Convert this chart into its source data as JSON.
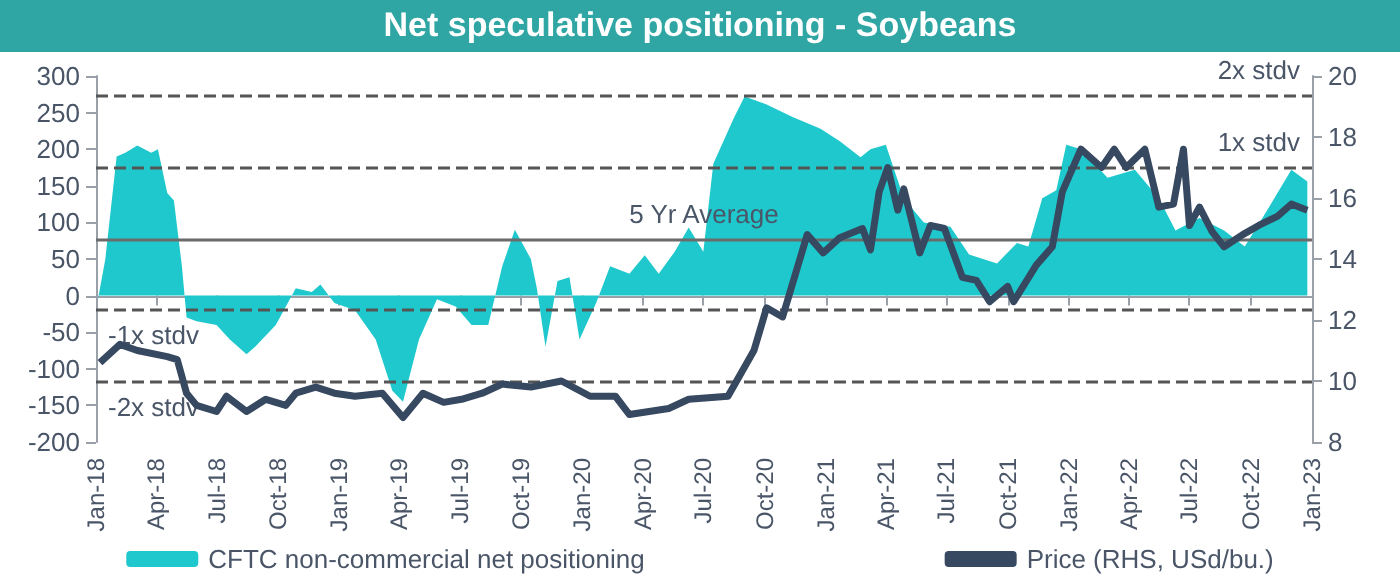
{
  "chart_data": {
    "type": "area",
    "title": "Net speculative positioning - Soybeans",
    "xlim": [
      "2018-01-01",
      "2023-01-01"
    ],
    "xticks": [
      {
        "value": "2018-01-01",
        "label": "Jan-18"
      },
      {
        "value": "2018-04-01",
        "label": "Apr-18"
      },
      {
        "value": "2018-07-01",
        "label": "Jul-18"
      },
      {
        "value": "2018-10-01",
        "label": "Oct-18"
      },
      {
        "value": "2019-01-01",
        "label": "Jan-19"
      },
      {
        "value": "2019-04-01",
        "label": "Apr-19"
      },
      {
        "value": "2019-07-01",
        "label": "Jul-19"
      },
      {
        "value": "2019-10-01",
        "label": "Oct-19"
      },
      {
        "value": "2020-01-01",
        "label": "Jan-20"
      },
      {
        "value": "2020-04-01",
        "label": "Apr-20"
      },
      {
        "value": "2020-07-01",
        "label": "Jul-20"
      },
      {
        "value": "2020-10-01",
        "label": "Oct-20"
      },
      {
        "value": "2021-01-01",
        "label": "Jan-21"
      },
      {
        "value": "2021-04-01",
        "label": "Apr-21"
      },
      {
        "value": "2021-07-01",
        "label": "Jul-21"
      },
      {
        "value": "2021-10-01",
        "label": "Oct-21"
      },
      {
        "value": "2022-01-01",
        "label": "Jan-22"
      },
      {
        "value": "2022-04-01",
        "label": "Apr-22"
      },
      {
        "value": "2022-07-01",
        "label": "Jul-22"
      },
      {
        "value": "2022-10-01",
        "label": "Oct-22"
      },
      {
        "value": "2023-01-01",
        "label": "Jan-23"
      }
    ],
    "ylim": [
      -200,
      300
    ],
    "yticks": [
      -200,
      -150,
      -100,
      -50,
      0,
      50,
      100,
      150,
      200,
      250,
      300
    ],
    "y2lim": [
      8,
      20
    ],
    "y2ticks": [
      8,
      10,
      12,
      14,
      16,
      18,
      20
    ],
    "grid": false,
    "legend": "bottom",
    "series": [
      {
        "name": "CFTC non-commercial net positioning",
        "color": "#1fc8cc",
        "x": [
          "2018-01-04",
          "2018-01-15",
          "2018-02-01",
          "2018-02-14",
          "2018-03-04",
          "2018-03-25",
          "2018-04-04",
          "2018-04-18",
          "2018-04-28",
          "2018-05-10",
          "2018-05-17",
          "2018-06-01",
          "2018-07-01",
          "2018-07-21",
          "2018-08-15",
          "2018-08-28",
          "2018-09-28",
          "2018-10-28",
          "2018-11-21",
          "2018-12-04",
          "2018-12-25",
          "2019-01-25",
          "2019-02-25",
          "2019-03-22",
          "2019-04-07",
          "2019-05-01",
          "2019-05-28",
          "2019-06-25",
          "2019-07-19",
          "2019-08-13",
          "2019-09-03",
          "2019-09-22",
          "2019-10-16",
          "2019-10-25",
          "2019-11-07",
          "2019-11-25",
          "2019-12-13",
          "2019-12-28",
          "2020-01-22",
          "2020-02-12",
          "2020-03-12",
          "2020-04-04",
          "2020-04-25",
          "2020-05-19",
          "2020-06-09",
          "2020-07-01",
          "2020-07-16",
          "2020-08-16",
          "2020-09-01",
          "2020-10-04",
          "2020-11-12",
          "2020-12-24",
          "2021-01-22",
          "2021-02-22",
          "2021-03-09",
          "2021-04-01",
          "2021-04-28",
          "2021-05-28",
          "2021-07-07",
          "2021-08-04",
          "2021-09-15",
          "2021-10-15",
          "2021-11-01",
          "2021-11-22",
          "2021-12-13",
          "2021-12-28",
          "2022-01-19",
          "2022-02-28",
          "2022-04-10",
          "2022-05-16",
          "2022-06-10",
          "2022-07-16",
          "2022-08-22",
          "2022-09-22",
          "2022-10-22",
          "2022-12-01",
          "2022-12-25"
        ],
        "values": [
          -5,
          50,
          190,
          195,
          205,
          195,
          200,
          140,
          130,
          40,
          -30,
          -35,
          -40,
          -60,
          -80,
          -70,
          -40,
          10,
          5,
          15,
          -10,
          -20,
          -60,
          -130,
          -145,
          -60,
          -5,
          -15,
          -40,
          -40,
          40,
          90,
          50,
          10,
          -70,
          20,
          25,
          -60,
          -10,
          40,
          30,
          55,
          30,
          60,
          93,
          60,
          180,
          243,
          272,
          261,
          244,
          228,
          211,
          189,
          200,
          206,
          133,
          100,
          94,
          56,
          44,
          72,
          67,
          133,
          144,
          206,
          200,
          161,
          172,
          133,
          89,
          106,
          89,
          67,
          111,
          172,
          156
        ]
      },
      {
        "name": "Price (RHS, USd/bu.)",
        "type": "line",
        "axis": "y2",
        "color": "#374861",
        "x": [
          "2018-01-07",
          "2018-02-06",
          "2018-03-04",
          "2018-04-18",
          "2018-05-03",
          "2018-05-17",
          "2018-06-01",
          "2018-07-01",
          "2018-07-16",
          "2018-08-15",
          "2018-09-13",
          "2018-10-13",
          "2018-10-28",
          "2018-11-27",
          "2018-12-25",
          "2019-01-25",
          "2019-03-07",
          "2019-04-07",
          "2019-05-07",
          "2019-06-07",
          "2019-07-04",
          "2019-08-04",
          "2019-09-03",
          "2019-10-16",
          "2019-12-01",
          "2020-01-13",
          "2020-02-20",
          "2020-03-12",
          "2020-05-10",
          "2020-06-09",
          "2020-08-07",
          "2020-09-15",
          "2020-10-04",
          "2020-10-28",
          "2020-12-04",
          "2020-12-28",
          "2021-01-22",
          "2021-02-25",
          "2021-03-09",
          "2021-03-22",
          "2021-04-04",
          "2021-04-19",
          "2021-04-28",
          "2021-05-22",
          "2021-06-07",
          "2021-06-28",
          "2021-07-25",
          "2021-08-15",
          "2021-09-04",
          "2021-10-01",
          "2021-10-10",
          "2021-11-13",
          "2021-12-07",
          "2021-12-22",
          "2022-01-19",
          "2022-02-19",
          "2022-03-10",
          "2022-03-28",
          "2022-04-25",
          "2022-05-16",
          "2022-06-07",
          "2022-06-22",
          "2022-07-01",
          "2022-07-16",
          "2022-08-04",
          "2022-08-22",
          "2022-09-19",
          "2022-10-13",
          "2022-11-10",
          "2022-12-01",
          "2022-12-25"
        ],
        "values": [
          10.6,
          11.2,
          11.0,
          10.8,
          10.7,
          9.6,
          9.2,
          9.0,
          9.5,
          9.0,
          9.4,
          9.2,
          9.6,
          9.8,
          9.6,
          9.5,
          9.6,
          8.8,
          9.6,
          9.3,
          9.4,
          9.6,
          9.9,
          9.8,
          10.0,
          9.5,
          9.5,
          8.9,
          9.1,
          9.4,
          9.5,
          11.0,
          12.4,
          12.1,
          14.8,
          14.2,
          14.7,
          15.0,
          14.3,
          16.2,
          17.0,
          15.6,
          16.3,
          14.2,
          15.1,
          15.0,
          13.4,
          13.3,
          12.6,
          13.1,
          12.6,
          13.8,
          14.4,
          16.2,
          17.6,
          17.0,
          17.6,
          17.0,
          17.6,
          15.7,
          15.8,
          17.6,
          15.1,
          15.7,
          14.9,
          14.4,
          14.8,
          15.1,
          15.4,
          15.8,
          15.6
        ]
      }
    ],
    "ref_lines": [
      {
        "axis": "y",
        "value": 78,
        "label": "5 Yr Average",
        "color": "#6b6b6b",
        "line_style": "solid"
      },
      {
        "axis": "y",
        "value": 176,
        "label": "1x stdv",
        "color": "#555555",
        "line_style": "dashed"
      },
      {
        "axis": "y",
        "value": 274,
        "label": "2x stdv",
        "color": "#555555",
        "line_style": "dashed"
      },
      {
        "axis": "y",
        "value": -20,
        "label": "-1x stdv",
        "color": "#555555",
        "line_style": "dashed"
      },
      {
        "axis": "y",
        "value": -118,
        "label": "-2x stdv",
        "color": "#555555",
        "line_style": "dashed"
      }
    ]
  }
}
